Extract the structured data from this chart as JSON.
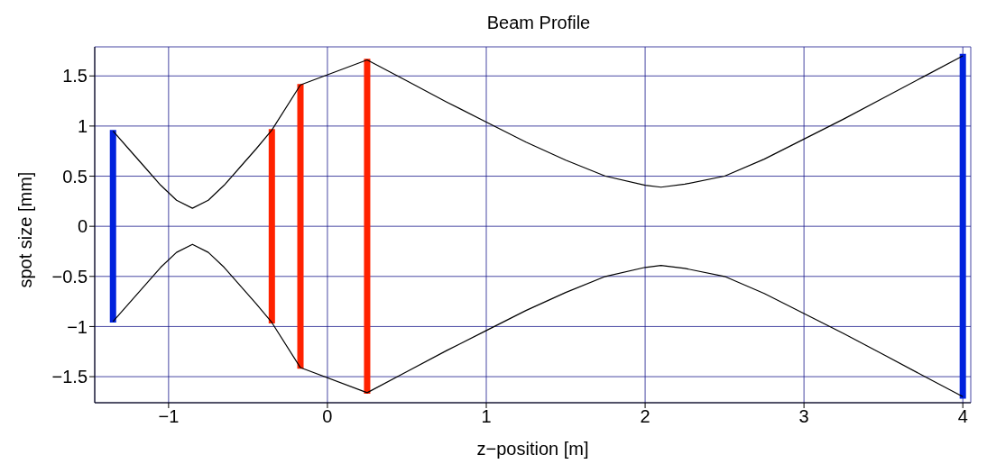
{
  "chart_data": {
    "type": "line",
    "title": "Beam Profile",
    "xlabel": "z−position [m]",
    "ylabel": "spot size [mm]",
    "xlim": [
      -1.465,
      4.05
    ],
    "ylim": [
      -1.76,
      1.79
    ],
    "xticks": [
      {
        "value": -1,
        "label": "−1"
      },
      0,
      1,
      2,
      3,
      4
    ],
    "yticks": [
      {
        "value": -1.5,
        "label": "−1.5"
      },
      {
        "value": -1,
        "label": "−1"
      },
      {
        "value": -0.5,
        "label": "−0.5"
      },
      0,
      0.5,
      1,
      1.5
    ],
    "grid": true,
    "marker": "none",
    "line_style": "solid",
    "series": [
      {
        "type": "line",
        "color": "#0022dd",
        "x": [
          -1.35,
          -1.35
        ],
        "values": [
          -0.96,
          0.96
        ]
      },
      {
        "type": "line",
        "color": "#ff2200",
        "x": [
          -0.35,
          -0.35
        ],
        "values": [
          -0.97,
          0.97
        ]
      },
      {
        "type": "line",
        "color": "#ff2200",
        "x": [
          -0.17,
          -0.17
        ],
        "values": [
          -1.42,
          1.42
        ]
      },
      {
        "type": "line",
        "color": "#ff2200",
        "x": [
          0.25,
          0.25
        ],
        "values": [
          -1.67,
          1.67
        ]
      },
      {
        "type": "line",
        "color": "#0022dd",
        "x": [
          4.0,
          4.0
        ],
        "values": [
          -1.72,
          1.72
        ]
      },
      {
        "type": "line",
        "color": "#000000",
        "x": [
          -1.35,
          -1.25,
          -1.15,
          -1.05,
          -0.95,
          -0.85,
          -0.75,
          -0.65,
          -0.55,
          -0.45,
          -0.35,
          -0.17,
          0.25,
          0.5,
          0.75,
          1.0,
          1.25,
          1.5,
          1.75,
          2.0,
          2.1,
          2.25,
          2.5,
          2.75,
          3.0,
          3.25,
          3.5,
          3.75,
          4.0
        ],
        "values": [
          0.95,
          0.77,
          0.59,
          0.41,
          0.26,
          0.18,
          0.26,
          0.41,
          0.59,
          0.77,
          0.96,
          1.41,
          1.66,
          1.45,
          1.24,
          1.04,
          0.84,
          0.66,
          0.5,
          0.41,
          0.39,
          0.42,
          0.5,
          0.67,
          0.87,
          1.07,
          1.28,
          1.49,
          1.7
        ]
      },
      {
        "type": "line",
        "color": "#000000",
        "x": [
          -1.35,
          -1.25,
          -1.15,
          -1.05,
          -0.95,
          -0.85,
          -0.75,
          -0.65,
          -0.55,
          -0.45,
          -0.35,
          -0.17,
          0.25,
          0.5,
          0.75,
          1.0,
          1.25,
          1.5,
          1.75,
          2.0,
          2.1,
          2.25,
          2.5,
          2.75,
          3.0,
          3.25,
          3.5,
          3.75,
          4.0
        ],
        "values": [
          -0.95,
          -0.77,
          -0.59,
          -0.41,
          -0.26,
          -0.18,
          -0.26,
          -0.41,
          -0.59,
          -0.77,
          -0.96,
          -1.41,
          -1.66,
          -1.45,
          -1.24,
          -1.04,
          -0.84,
          -0.66,
          -0.5,
          -0.41,
          -0.39,
          -0.42,
          -0.5,
          -0.67,
          -0.87,
          -1.07,
          -1.28,
          -1.49,
          -1.7
        ]
      }
    ]
  }
}
